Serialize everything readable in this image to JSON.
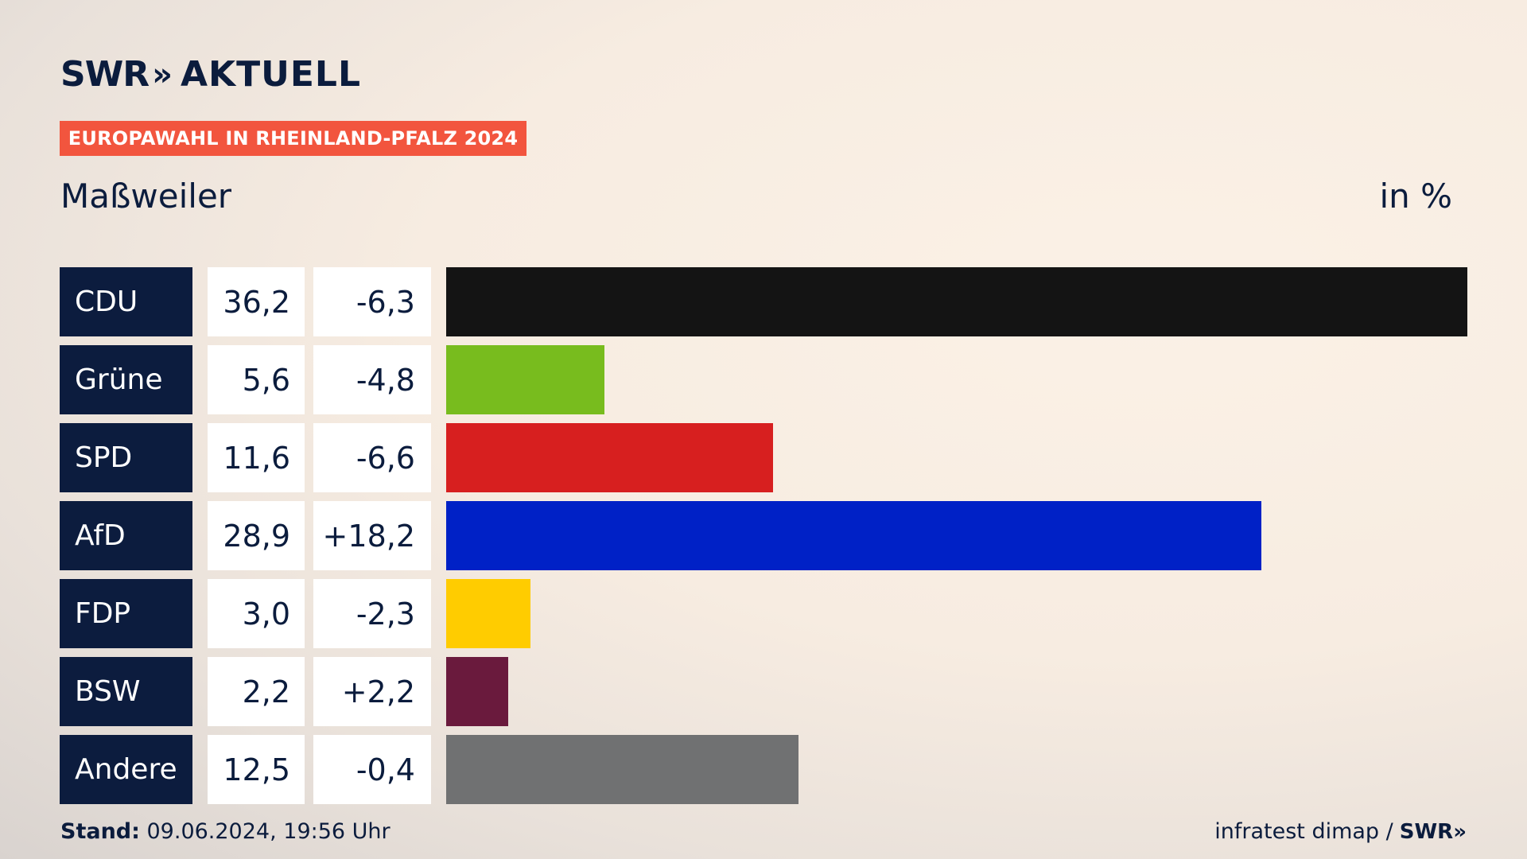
{
  "header": {
    "logo_brand": "SWR",
    "logo_chevrons": "»",
    "logo_title": "AKTUELL",
    "banner": "EUROPAWAHL IN RHEINLAND-PFALZ 2024",
    "region": "Maßweiler",
    "unit": "in %"
  },
  "colors": {
    "banner": "#f2553e",
    "party_box": "#0c1c3e"
  },
  "chart_data": {
    "type": "bar",
    "orientation": "horizontal",
    "title": "Maßweiler",
    "unit": "in %",
    "xlim": [
      0,
      36.2
    ],
    "categories": [
      "CDU",
      "Grüne",
      "SPD",
      "AfD",
      "FDP",
      "BSW",
      "Andere"
    ],
    "values": [
      36.2,
      5.6,
      11.6,
      28.9,
      3.0,
      2.2,
      12.5
    ],
    "value_labels": [
      "36,2",
      "5,6",
      "11,6",
      "28,9",
      "3,0",
      "2,2",
      "12,5"
    ],
    "changes": [
      -6.3,
      -4.8,
      -6.6,
      18.2,
      -2.3,
      2.2,
      -0.4
    ],
    "change_labels": [
      "-6,3",
      "-4,8",
      "-6,6",
      "+18,2",
      "-2,3",
      "+2,2",
      "-0,4"
    ],
    "bar_colors": [
      "#141414",
      "#78bc1e",
      "#d71f1f",
      "#0021c6",
      "#ffcc00",
      "#6a1a3d",
      "#707172"
    ]
  },
  "footer": {
    "stand_label": "Stand:",
    "stand_value": " 09.06.2024, 19:56 Uhr",
    "source": "infratest dimap /",
    "source_brand": "SWR»"
  }
}
